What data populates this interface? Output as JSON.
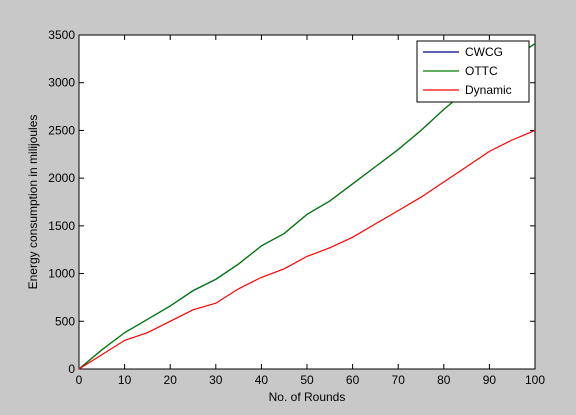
{
  "chart_data": {
    "type": "line",
    "title": "",
    "xlabel": "No. of Rounds",
    "ylabel": "Energy consumption in milijoules",
    "xlim": [
      0,
      100
    ],
    "ylim": [
      0,
      3500
    ],
    "xticks": [
      0,
      10,
      20,
      30,
      40,
      50,
      60,
      70,
      80,
      90,
      100
    ],
    "yticks": [
      0,
      500,
      1000,
      1500,
      2000,
      2500,
      3000,
      3500
    ],
    "grid": false,
    "legend_position": "top-right",
    "x": [
      0,
      5,
      10,
      15,
      20,
      25,
      30,
      35,
      40,
      45,
      50,
      55,
      60,
      65,
      70,
      75,
      80,
      85,
      90,
      95,
      100
    ],
    "series": [
      {
        "name": "CWCG",
        "color": "#000080",
        "values": [
          0,
          200,
          380,
          520,
          660,
          820,
          940,
          1100,
          1290,
          1420,
          1620,
          1760,
          1940,
          2120,
          2300,
          2500,
          2720,
          2920,
          3080,
          3250,
          3410
        ]
      },
      {
        "name": "OTTC",
        "color": "#008000",
        "values": [
          0,
          200,
          380,
          520,
          660,
          820,
          940,
          1100,
          1290,
          1420,
          1620,
          1760,
          1940,
          2120,
          2300,
          2500,
          2720,
          2920,
          3080,
          3250,
          3410
        ]
      },
      {
        "name": "Dynamic",
        "color": "#ff0000",
        "values": [
          0,
          150,
          300,
          380,
          500,
          620,
          690,
          840,
          960,
          1050,
          1180,
          1270,
          1380,
          1520,
          1660,
          1800,
          1960,
          2120,
          2280,
          2400,
          2500
        ]
      }
    ]
  }
}
